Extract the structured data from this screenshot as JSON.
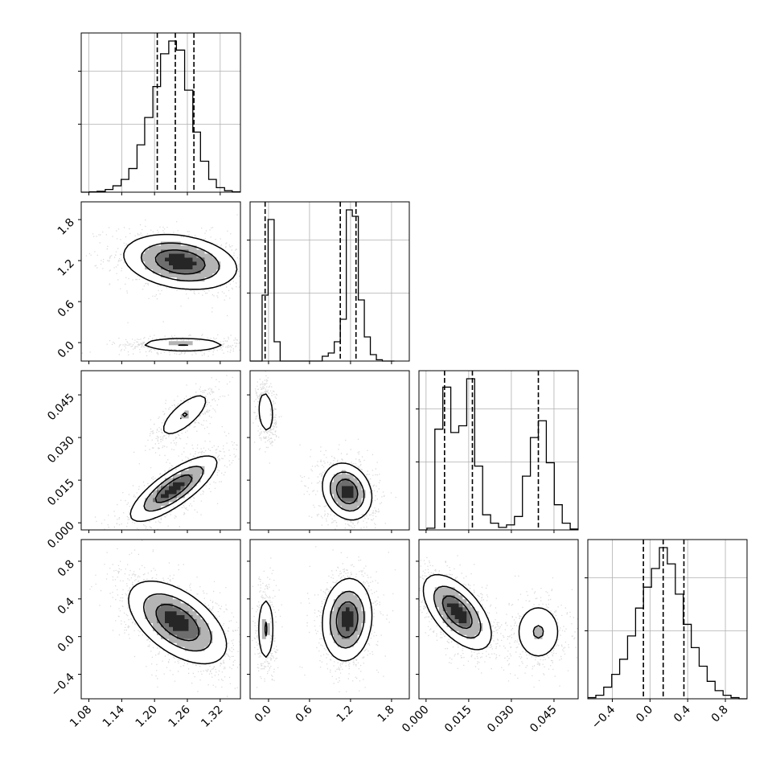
{
  "chart_data": {
    "type": "scatter",
    "title": "",
    "layout": "corner plot (lower-triangular grid of 1-D histograms and 2-D density plots)",
    "parameters": [
      {
        "index": 0,
        "label": "",
        "ticks": [
          "1.08",
          "1.14",
          "1.20",
          "1.26",
          "1.32"
        ],
        "tick_values": [
          1.08,
          1.14,
          1.2,
          1.26,
          1.32
        ],
        "range": [
          1.066,
          1.357
        ]
      },
      {
        "index": 1,
        "label": "",
        "ticks": [
          "0.0",
          "0.6",
          "1.2",
          "1.8"
        ],
        "tick_values": [
          0.0,
          0.6,
          1.2,
          1.8
        ],
        "range": [
          -0.27,
          2.06
        ]
      },
      {
        "index": 2,
        "label": "",
        "ticks": [
          "0.000",
          "0.015",
          "0.030",
          "0.045"
        ],
        "tick_values": [
          0.0,
          0.015,
          0.03,
          0.045
        ],
        "range": [
          -0.0025,
          0.0535
        ]
      },
      {
        "index": 3,
        "label": "",
        "ticks": [
          "−0.4",
          "0.0",
          "0.4",
          "0.8"
        ],
        "tick_values": [
          -0.4,
          0.0,
          0.4,
          0.8
        ],
        "range": [
          -0.66,
          1.03
        ]
      }
    ],
    "quantiles": [
      [
        1.205,
        1.238,
        1.272
      ],
      [
        -0.05,
        1.05,
        1.28
      ],
      [
        0.0065,
        0.0163,
        0.0395
      ],
      [
        -0.07,
        0.14,
        0.36
      ]
    ],
    "histograms": [
      {
        "param": 0,
        "bin_edges": [
          1.066,
          1.081,
          1.095,
          1.11,
          1.124,
          1.139,
          1.153,
          1.168,
          1.182,
          1.197,
          1.211,
          1.226,
          1.24,
          1.255,
          1.27,
          1.284,
          1.299,
          1.313,
          1.328,
          1.342,
          1.357
        ],
        "counts": [
          0,
          2,
          5,
          15,
          35,
          70,
          130,
          260,
          410,
          580,
          760,
          830,
          780,
          560,
          330,
          170,
          70,
          25,
          8,
          2
        ]
      },
      {
        "param": 1,
        "bin_edges": [
          -0.27,
          -0.182,
          -0.094,
          -0.006,
          0.082,
          0.17,
          0.258,
          0.346,
          0.434,
          0.522,
          0.61,
          0.698,
          0.786,
          0.874,
          0.962,
          1.05,
          1.138,
          1.226,
          1.314,
          1.402,
          1.49,
          1.578,
          1.666,
          1.754,
          1.842
        ],
        "counts": [
          0,
          0,
          410,
          880,
          120,
          0,
          0,
          0,
          0,
          0,
          0,
          0,
          30,
          50,
          120,
          260,
          940,
          900,
          380,
          150,
          40,
          8,
          0,
          0
        ]
      },
      {
        "param": 2,
        "bin_edges": [
          -0.0025,
          0.0003,
          0.0031,
          0.0059,
          0.0087,
          0.0115,
          0.0143,
          0.0171,
          0.0199,
          0.0227,
          0.0255,
          0.0283,
          0.0311,
          0.0339,
          0.0367,
          0.0395,
          0.0423,
          0.0451,
          0.0479,
          0.0507,
          0.0535
        ],
        "counts": [
          0,
          10,
          600,
          850,
          580,
          620,
          900,
          380,
          90,
          40,
          15,
          30,
          80,
          320,
          550,
          650,
          400,
          150,
          40,
          5
        ]
      },
      {
        "param": 3,
        "bin_edges": [
          -0.66,
          -0.575,
          -0.491,
          -0.406,
          -0.322,
          -0.238,
          -0.153,
          -0.069,
          0.016,
          0.1,
          0.184,
          0.269,
          0.353,
          0.438,
          0.522,
          0.607,
          0.691,
          0.776,
          0.86,
          0.945,
          1.029
        ],
        "counts": [
          10,
          30,
          100,
          210,
          340,
          540,
          780,
          960,
          1120,
          1300,
          1160,
          900,
          640,
          440,
          280,
          150,
          70,
          30,
          10,
          0
        ]
      }
    ],
    "pair_plots": [
      {
        "x_param": 0,
        "y_param": 1,
        "modes": [
          {
            "center": [
              1.247,
              1.18
            ],
            "spread": [
              0.052,
              0.2
            ],
            "rho": -0.25,
            "weight": 0.68
          },
          {
            "center": [
              1.252,
              -0.03
            ],
            "spread": [
              0.048,
              0.05
            ],
            "rho": -0.05,
            "weight": 0.32
          }
        ]
      },
      {
        "x_param": 0,
        "y_param": 2,
        "modes": [
          {
            "center": [
              1.255,
              0.038
            ],
            "spread": [
              0.026,
              0.0045
            ],
            "rho": 0.75,
            "weight": 0.3
          },
          {
            "center": [
              1.235,
              0.012
            ],
            "spread": [
              0.04,
              0.0058
            ],
            "rho": 0.8,
            "weight": 0.7
          }
        ]
      },
      {
        "x_param": 1,
        "y_param": 2,
        "modes": [
          {
            "center": [
              -0.04,
              0.039
            ],
            "spread": [
              0.06,
              0.0045
            ],
            "rho": -0.2,
            "weight": 0.3
          },
          {
            "center": [
              1.15,
              0.011
            ],
            "spread": [
              0.18,
              0.005
            ],
            "rho": -0.2,
            "weight": 0.7
          }
        ]
      },
      {
        "x_param": 0,
        "y_param": 3,
        "modes": [
          {
            "center": [
              1.242,
              0.15
            ],
            "spread": [
              0.045,
              0.22
            ],
            "rho": -0.55,
            "weight": 1.0
          }
        ]
      },
      {
        "x_param": 1,
        "y_param": 3,
        "modes": [
          {
            "center": [
              -0.04,
              0.08
            ],
            "spread": [
              0.06,
              0.2
            ],
            "rho": 0.0,
            "weight": 0.32
          },
          {
            "center": [
              1.15,
              0.18
            ],
            "spread": [
              0.18,
              0.22
            ],
            "rho": 0.1,
            "weight": 0.68
          }
        ]
      },
      {
        "x_param": 2,
        "y_param": 3,
        "modes": [
          {
            "center": [
              0.011,
              0.26
            ],
            "spread": [
              0.006,
              0.2
            ],
            "rho": -0.6,
            "weight": 0.7
          },
          {
            "center": [
              0.0395,
              0.05
            ],
            "spread": [
              0.0045,
              0.17
            ],
            "rho": 0.0,
            "weight": 0.3
          }
        ]
      }
    ],
    "grid": true,
    "colors": {
      "contour": "#000000",
      "points": "#000000",
      "grid": "#b0b0b0",
      "axes": "#000000",
      "background": "#ffffff"
    }
  }
}
